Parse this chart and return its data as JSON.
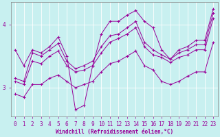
{
  "xlabel": "Windchill (Refroidissement éolien,°C)",
  "bg_color": "#c8f0f0",
  "line_color": "#990099",
  "xlim": [
    -0.5,
    23.5
  ],
  "ylim": [
    2.55,
    4.35
  ],
  "yticks": [
    3,
    4
  ],
  "xticks": [
    0,
    1,
    2,
    3,
    4,
    5,
    6,
    7,
    8,
    9,
    10,
    11,
    12,
    13,
    14,
    15,
    16,
    17,
    18,
    19,
    20,
    21,
    22,
    23
  ],
  "lines": [
    {
      "x": [
        0,
        1,
        2,
        3,
        4,
        5,
        6,
        7,
        8,
        9,
        10,
        11,
        12,
        13,
        14,
        15,
        16,
        17,
        18,
        19,
        20,
        21,
        22,
        23
      ],
      "y": [
        3.6,
        3.35,
        3.6,
        3.55,
        3.65,
        3.8,
        3.5,
        2.65,
        2.72,
        3.35,
        3.85,
        4.05,
        4.05,
        4.15,
        4.22,
        4.05,
        3.95,
        3.6,
        3.45,
        3.6,
        3.65,
        3.75,
        3.75,
        4.25
      ]
    },
    {
      "x": [
        0,
        1,
        2,
        3,
        4,
        5,
        6,
        7,
        8,
        9,
        10,
        11,
        12,
        13,
        14,
        15,
        16,
        17,
        18,
        19,
        20,
        21,
        22,
        23
      ],
      "y": [
        3.15,
        3.1,
        3.55,
        3.5,
        3.6,
        3.7,
        3.42,
        3.3,
        3.35,
        3.42,
        3.65,
        3.82,
        3.85,
        3.95,
        4.05,
        3.72,
        3.6,
        3.52,
        3.45,
        3.55,
        3.6,
        3.68,
        3.68,
        4.18
      ]
    },
    {
      "x": [
        0,
        1,
        2,
        3,
        4,
        5,
        6,
        7,
        8,
        9,
        10,
        11,
        12,
        13,
        14,
        15,
        16,
        17,
        18,
        19,
        20,
        21,
        22,
        23
      ],
      "y": [
        3.1,
        3.05,
        3.42,
        3.38,
        3.5,
        3.58,
        3.35,
        3.25,
        3.28,
        3.35,
        3.55,
        3.72,
        3.78,
        3.85,
        3.95,
        3.65,
        3.52,
        3.48,
        3.4,
        3.48,
        3.52,
        3.6,
        3.6,
        4.1
      ]
    },
    {
      "x": [
        0,
        1,
        2,
        3,
        4,
        5,
        6,
        7,
        8,
        9,
        10,
        11,
        12,
        13,
        14,
        15,
        16,
        17,
        18,
        19,
        20,
        21,
        22,
        23
      ],
      "y": [
        2.9,
        2.85,
        3.05,
        3.05,
        3.15,
        3.2,
        3.1,
        3.0,
        3.05,
        3.1,
        3.25,
        3.38,
        3.42,
        3.5,
        3.58,
        3.35,
        3.28,
        3.1,
        3.05,
        3.1,
        3.18,
        3.25,
        3.25,
        3.72
      ]
    }
  ]
}
